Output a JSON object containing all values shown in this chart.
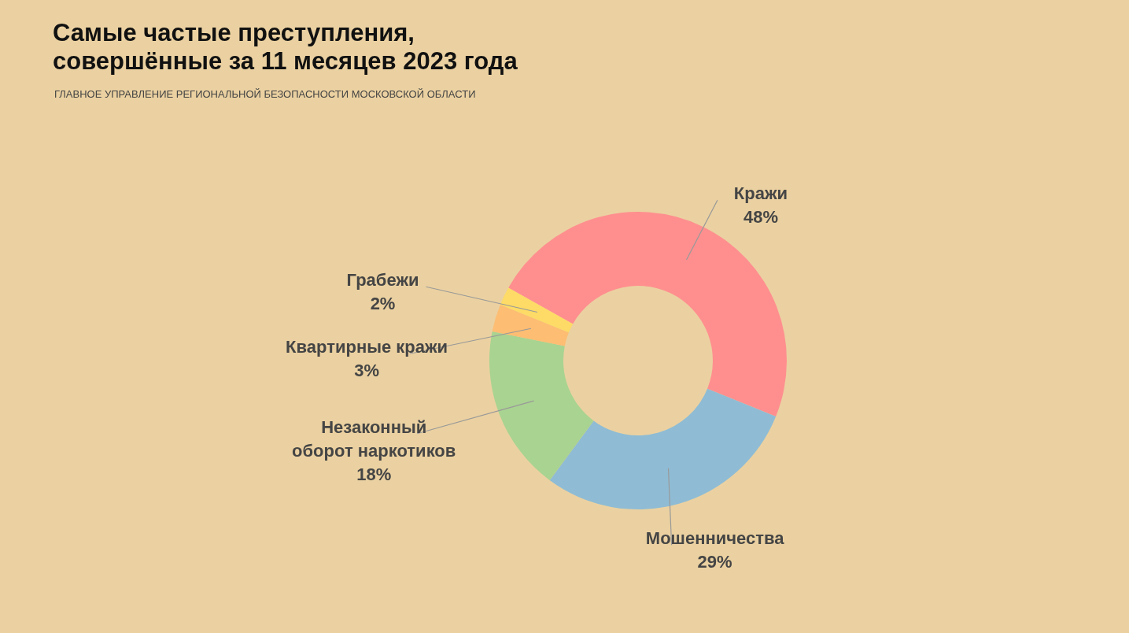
{
  "chart_data": {
    "type": "donut",
    "title": "Самые частые преступления, совершённые за 11 месяцев 2023 года",
    "subtitle": "ГЛАВНОЕ УПРАВЛЕНИЕ РЕГИОНАЛЬНОЙ БЕЗОПАСНОСТИ МОСКОВСКОЙ ОБЛАСТИ",
    "categories": [
      "Кражи",
      "Мошенничества",
      "Незаконный оборот наркотиков",
      "Квартирные кражи",
      "Грабежи"
    ],
    "values": [
      48,
      29,
      18,
      3,
      2
    ],
    "value_labels": [
      "48%",
      "29%",
      "18%",
      "3%",
      "2%"
    ],
    "colors": [
      "#ff8f8f",
      "#8fbcd4",
      "#a9d391",
      "#fdbd72",
      "#fddb66"
    ]
  }
}
